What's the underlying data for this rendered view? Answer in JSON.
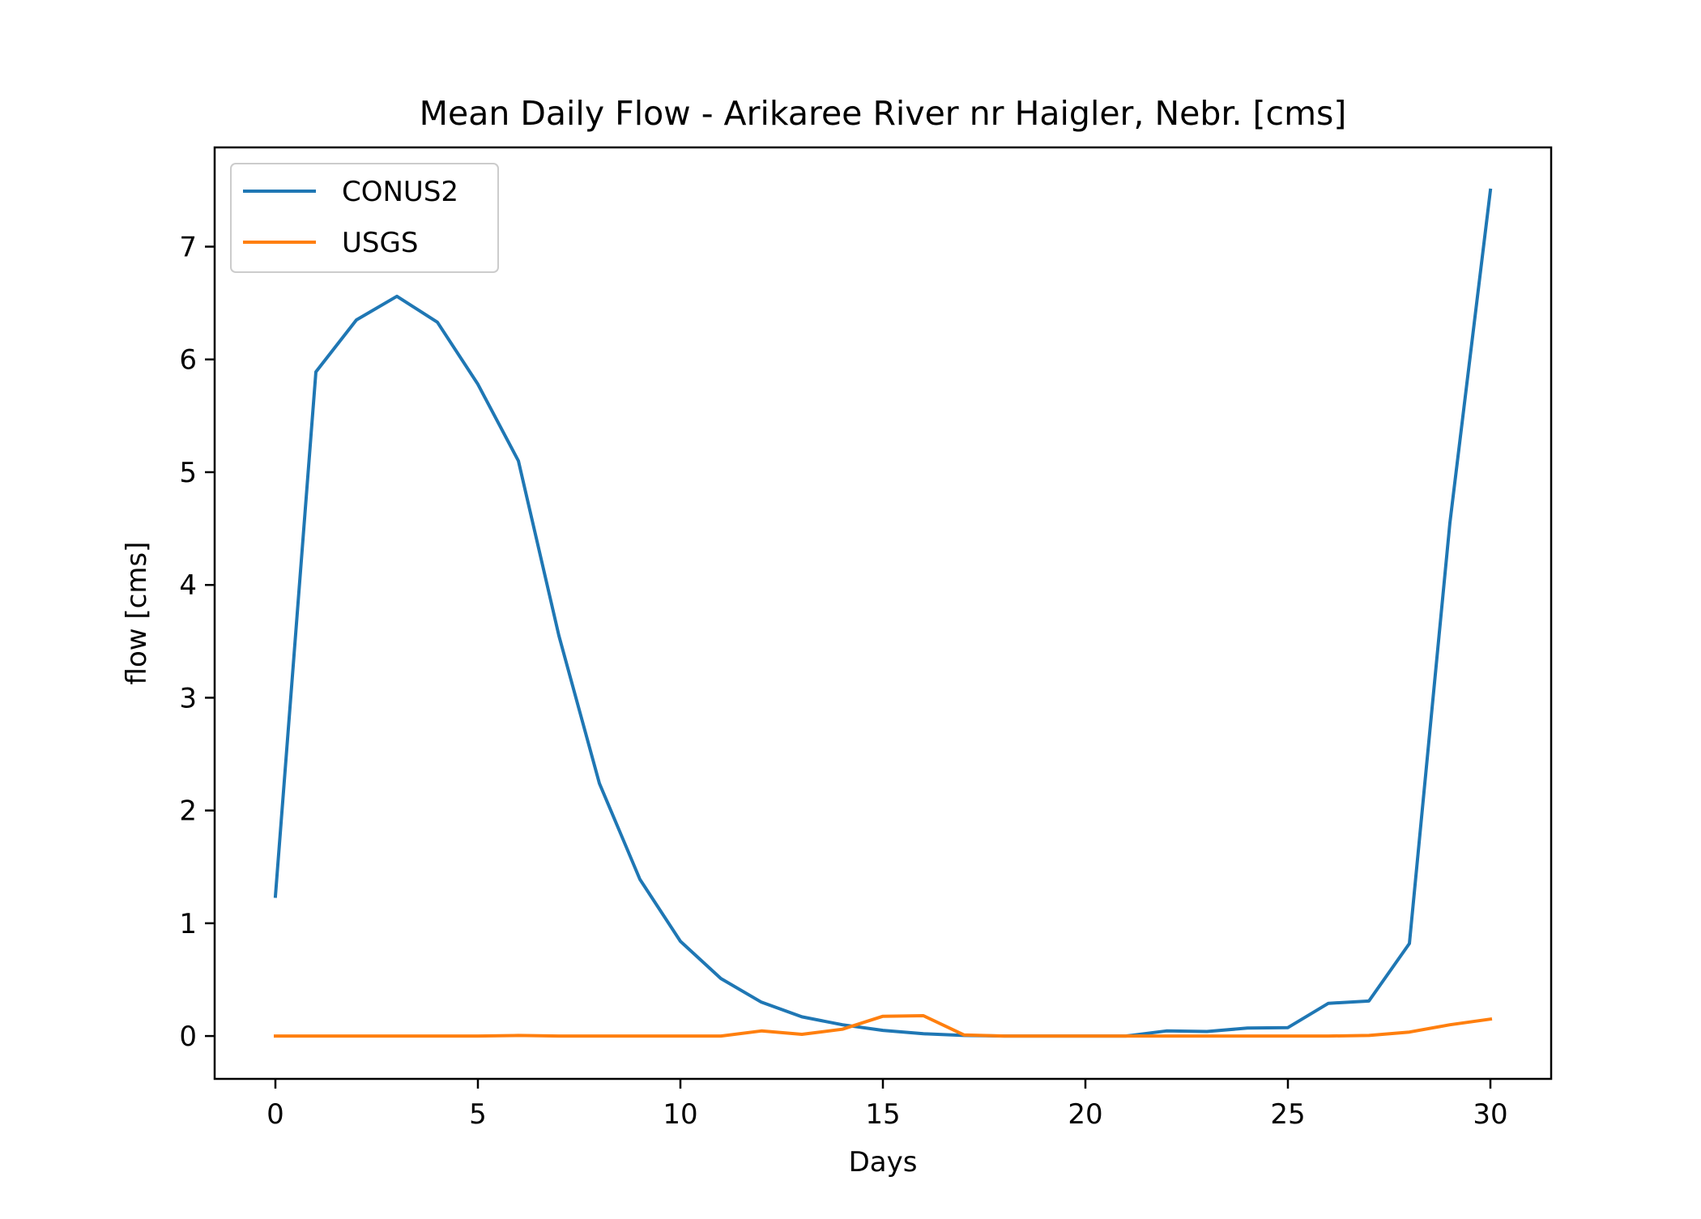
{
  "chart_data": {
    "type": "line",
    "title": "Mean Daily Flow - Arikaree River nr Haigler, Nebr. [cms]",
    "xlabel": "Days",
    "ylabel": "flow [cms]",
    "xlim": [
      -1.5,
      31.5
    ],
    "ylim": [
      -0.38,
      7.88
    ],
    "xticks": [
      0,
      5,
      10,
      15,
      20,
      25,
      30
    ],
    "yticks": [
      0,
      1,
      2,
      3,
      4,
      5,
      6,
      7
    ],
    "grid": false,
    "legend_position": "upper-left",
    "x": [
      0,
      1,
      2,
      3,
      4,
      5,
      6,
      7,
      8,
      9,
      10,
      11,
      12,
      13,
      14,
      15,
      16,
      17,
      18,
      19,
      20,
      21,
      22,
      23,
      24,
      25,
      26,
      27,
      28,
      29,
      30
    ],
    "series": [
      {
        "name": "CONUS2",
        "color": "#1f77b4",
        "values": [
          1.24,
          5.89,
          6.35,
          6.56,
          6.33,
          5.78,
          5.1,
          3.55,
          2.24,
          1.39,
          0.84,
          0.51,
          0.3,
          0.17,
          0.1,
          0.05,
          0.02,
          0.005,
          0.0,
          0.0,
          0.0,
          0.0,
          0.045,
          0.04,
          0.07,
          0.075,
          0.29,
          0.31,
          0.82,
          4.55,
          7.5
        ]
      },
      {
        "name": "USGS",
        "color": "#ff7f0e",
        "values": [
          0.0,
          0.0,
          0.0,
          0.0,
          0.0,
          0.0,
          0.005,
          0.0,
          0.0,
          0.0,
          0.0,
          0.0,
          0.045,
          0.015,
          0.06,
          0.175,
          0.18,
          0.01,
          0.0,
          0.0,
          0.0,
          0.0,
          0.0,
          0.0,
          0.0,
          0.0,
          0.0,
          0.005,
          0.035,
          0.1,
          0.15
        ]
      }
    ]
  }
}
